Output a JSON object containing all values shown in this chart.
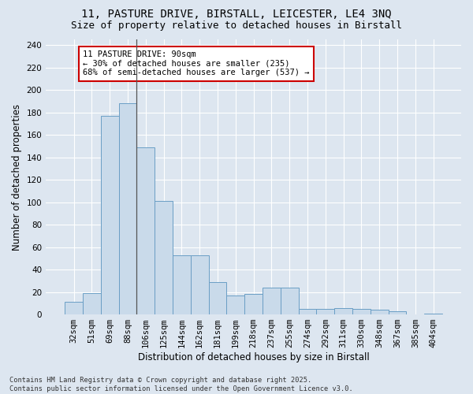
{
  "title_line1": "11, PASTURE DRIVE, BIRSTALL, LEICESTER, LE4 3NQ",
  "title_line2": "Size of property relative to detached houses in Birstall",
  "xlabel": "Distribution of detached houses by size in Birstall",
  "ylabel": "Number of detached properties",
  "bar_color": "#c9daea",
  "bar_edge_color": "#6a9ec5",
  "background_color": "#dde6f0",
  "grid_color": "#ffffff",
  "categories": [
    "32sqm",
    "51sqm",
    "69sqm",
    "88sqm",
    "106sqm",
    "125sqm",
    "144sqm",
    "162sqm",
    "181sqm",
    "199sqm",
    "218sqm",
    "237sqm",
    "255sqm",
    "274sqm",
    "292sqm",
    "311sqm",
    "330sqm",
    "348sqm",
    "367sqm",
    "385sqm",
    "404sqm"
  ],
  "values": [
    11,
    19,
    177,
    188,
    149,
    101,
    53,
    53,
    29,
    17,
    18,
    24,
    24,
    5,
    5,
    6,
    5,
    4,
    3,
    0,
    1
  ],
  "ylim": [
    0,
    245
  ],
  "yticks": [
    0,
    20,
    40,
    60,
    80,
    100,
    120,
    140,
    160,
    180,
    200,
    220,
    240
  ],
  "annotation_text": "11 PASTURE DRIVE: 90sqm\n← 30% of detached houses are smaller (235)\n68% of semi-detached houses are larger (537) →",
  "vline_bin_index": 3,
  "annotation_box_color": "#ffffff",
  "annotation_box_edge": "#cc0000",
  "footnote": "Contains HM Land Registry data © Crown copyright and database right 2025.\nContains public sector information licensed under the Open Government Licence v3.0.",
  "title_fontsize": 10,
  "subtitle_fontsize": 9,
  "label_fontsize": 8.5,
  "tick_fontsize": 7.5,
  "annot_fontsize": 7.5
}
